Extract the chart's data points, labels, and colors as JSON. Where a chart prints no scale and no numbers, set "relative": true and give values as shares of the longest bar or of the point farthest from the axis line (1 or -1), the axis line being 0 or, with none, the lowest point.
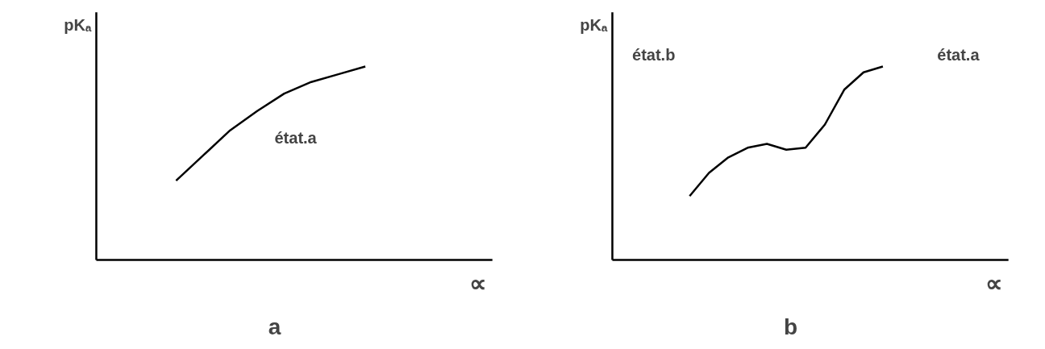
{
  "chart_data": [
    {
      "type": "line",
      "relative": true,
      "title": "a",
      "xlabel": "∝",
      "ylabel": "pKₐ",
      "categories": [
        null,
        null,
        null,
        null,
        null,
        null,
        null,
        null
      ],
      "series": [
        {
          "color": "#000000",
          "values": [
            0.41,
            0.54,
            0.67,
            0.77,
            0.86,
            0.92,
            0.96,
            1.0
          ]
        }
      ],
      "annotations": [
        "état.a"
      ],
      "marker": "none",
      "line_style": "solid"
    },
    {
      "type": "line",
      "relative": true,
      "title": "b",
      "xlabel": "∝",
      "ylabel": "pKₐ",
      "categories": [
        null,
        null,
        null,
        null,
        null,
        null,
        null,
        null,
        null,
        null,
        null
      ],
      "series": [
        {
          "color": "#000000",
          "values": [
            0.33,
            0.45,
            0.53,
            0.58,
            0.6,
            0.57,
            0.58,
            0.7,
            0.88,
            0.97,
            1.0
          ]
        }
      ],
      "annotations": [
        "état.b",
        "état.a"
      ],
      "marker": "none",
      "line_style": "solid"
    }
  ]
}
